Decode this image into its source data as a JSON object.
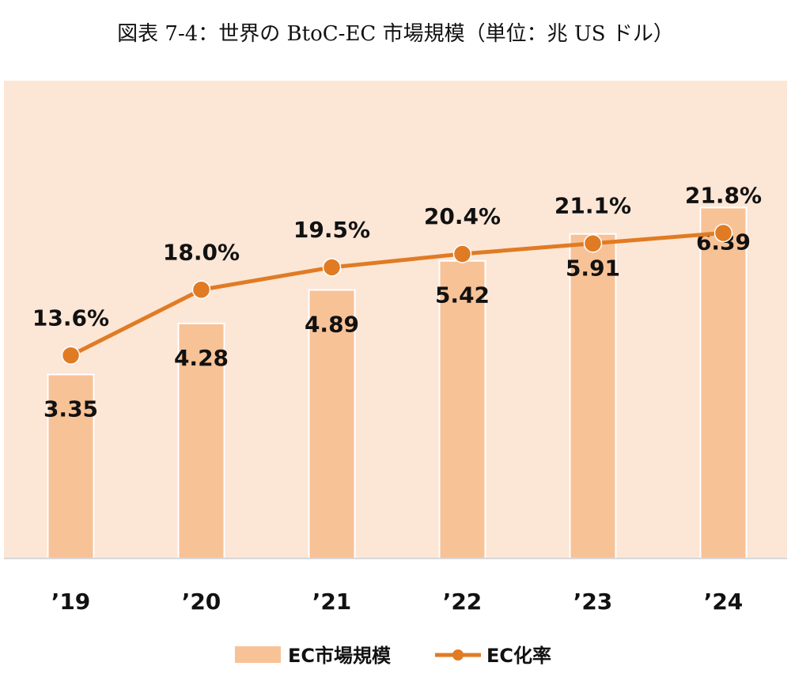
{
  "title": "図表 7-4：世界の BtoC-EC 市場規模（単位：兆 US ドル）",
  "colors": {
    "plot_background": "#fce6d6",
    "bar_fill": "#f8c297",
    "line": "#e07b24",
    "axis_line": "#d8d8d8"
  },
  "chart_data": {
    "type": "bar",
    "categories": [
      "’19",
      "’20",
      "’21",
      "’22",
      "’23",
      "’24"
    ],
    "series": [
      {
        "name": "EC市場規模",
        "type": "bar",
        "values": [
          3.35,
          4.28,
          4.89,
          5.42,
          5.91,
          6.39
        ],
        "labels": [
          "3.35",
          "4.28",
          "4.89",
          "5.42",
          "5.91",
          "6.39"
        ]
      },
      {
        "name": "EC化率",
        "type": "line",
        "values": [
          13.6,
          18.0,
          19.5,
          20.4,
          21.1,
          21.8
        ],
        "labels": [
          "13.6%",
          "18.0%",
          "19.5%",
          "20.4%",
          "21.1%",
          "21.8%"
        ]
      }
    ],
    "bar_axis_range": [
      0,
      8.7
    ],
    "line_axis_range": [
      0,
      32
    ],
    "grid": false,
    "legend_position": "bottom"
  }
}
